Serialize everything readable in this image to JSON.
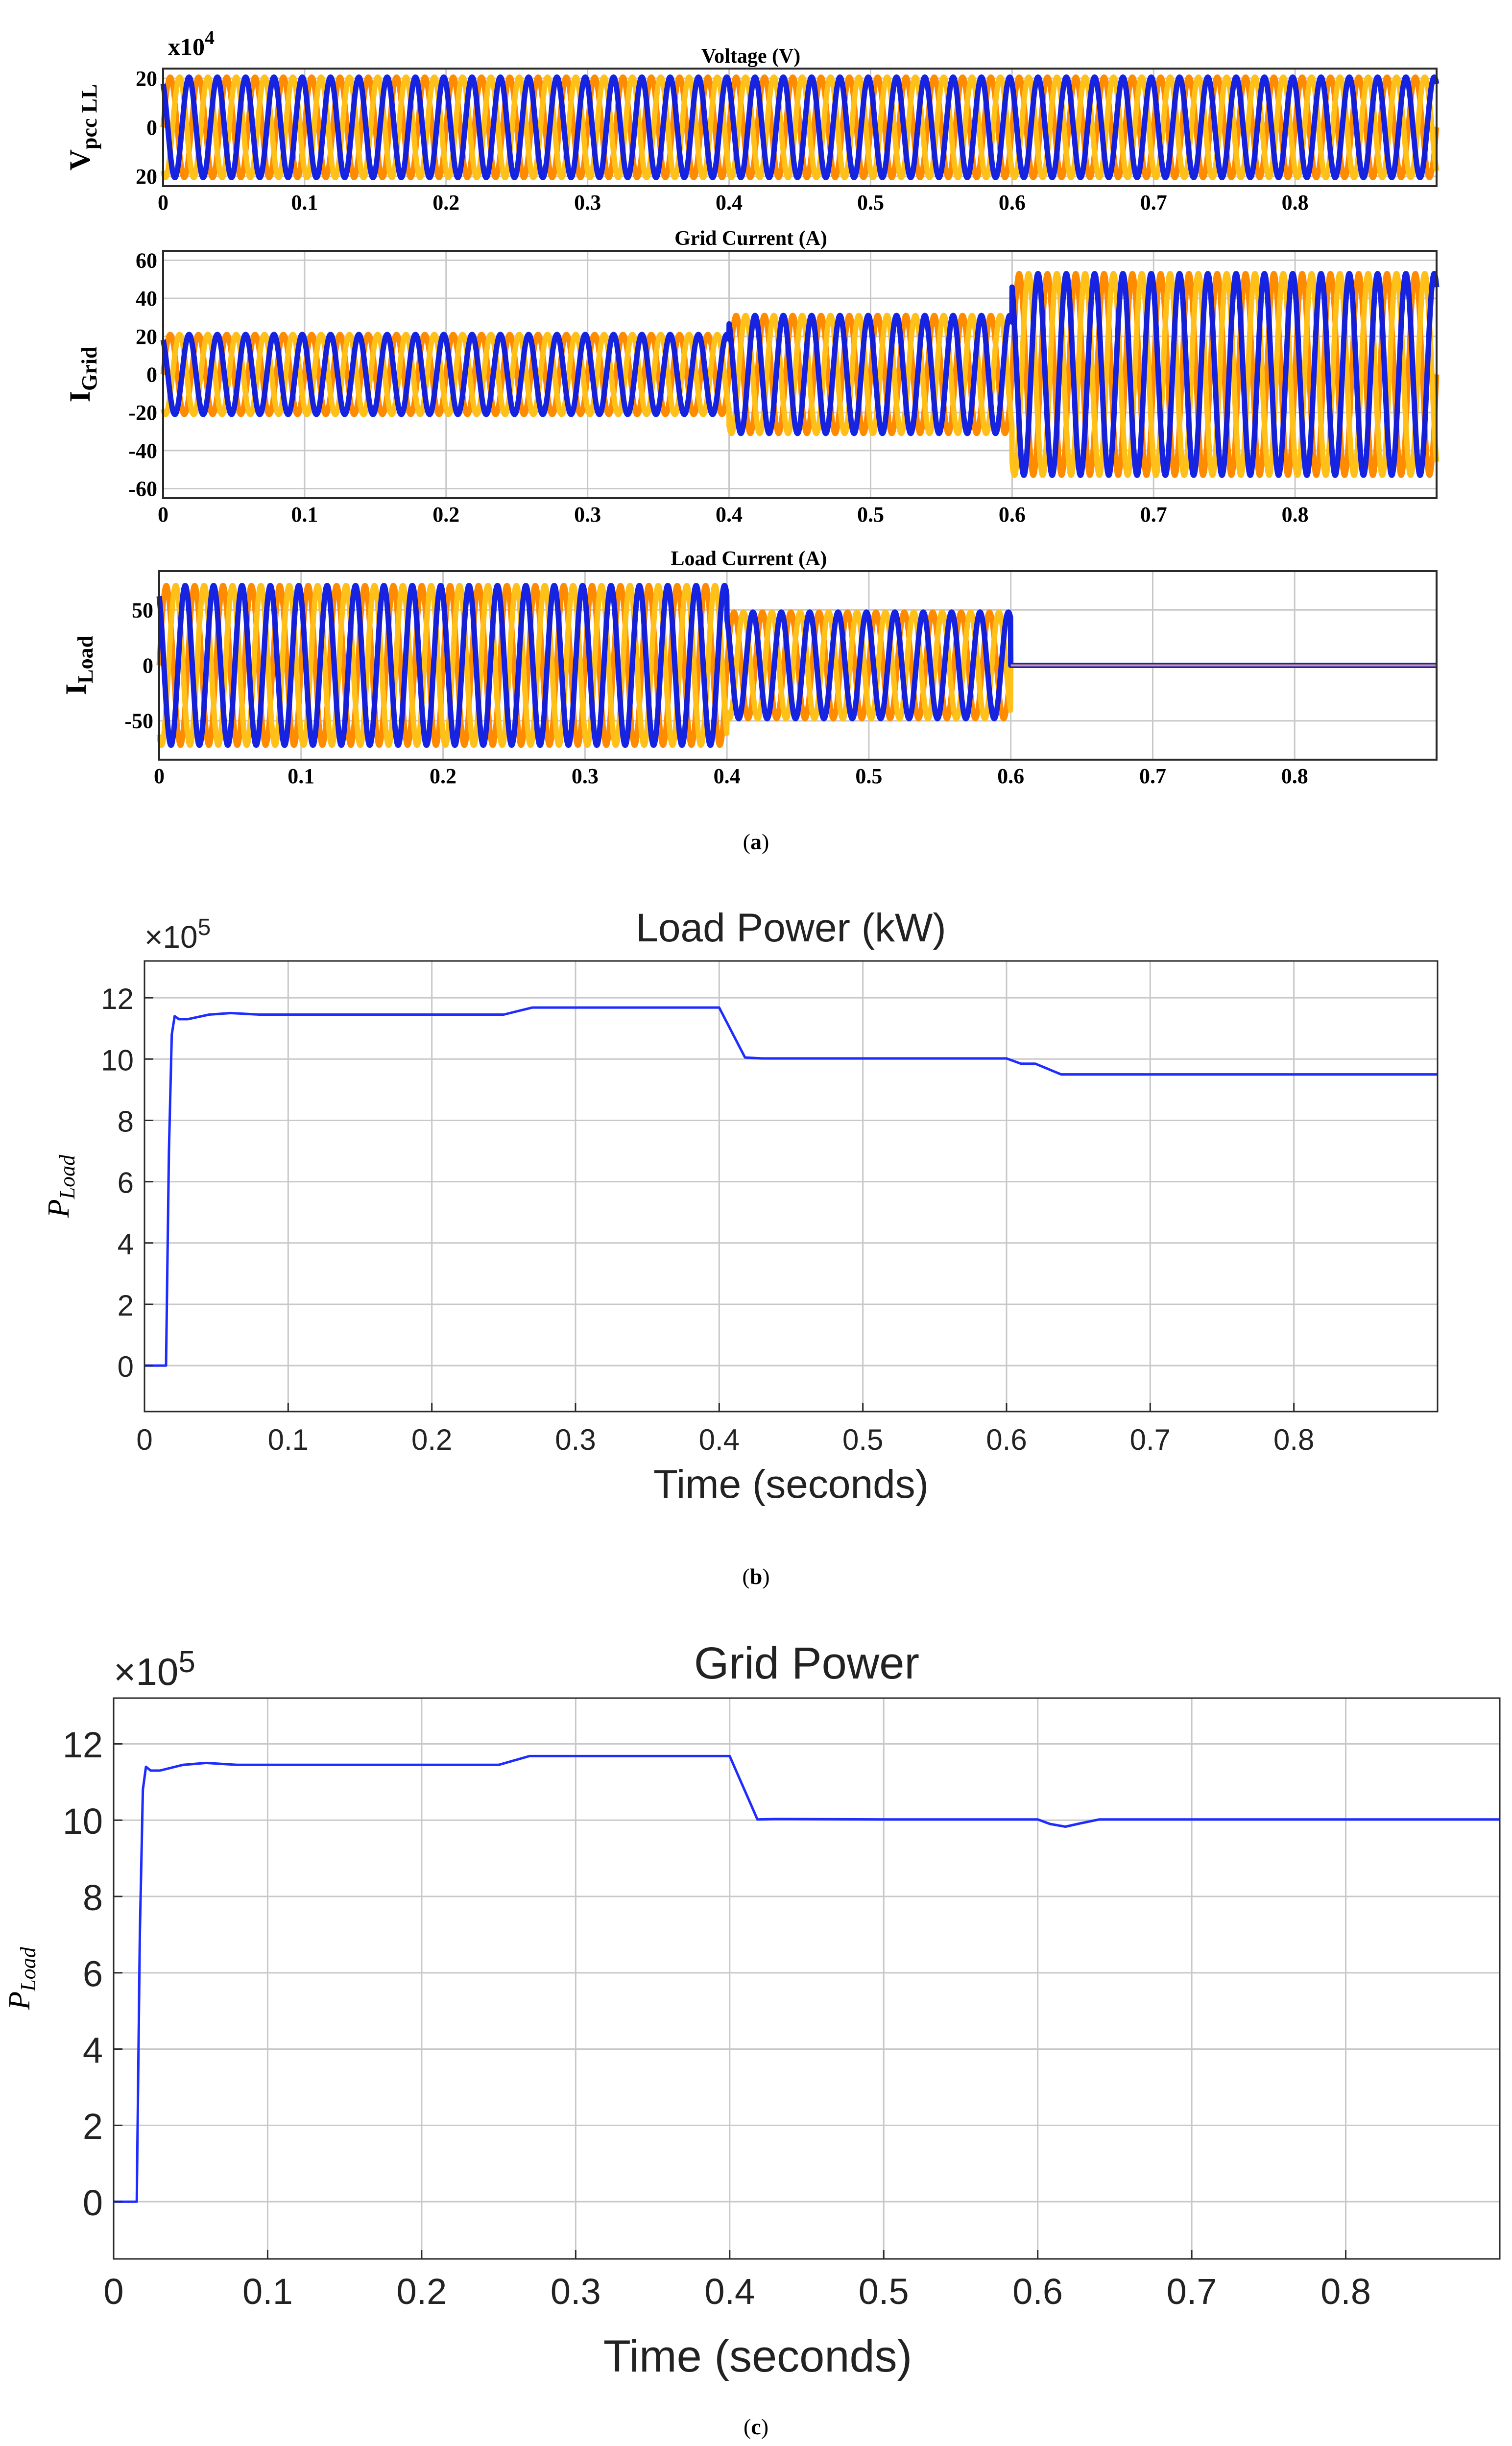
{
  "colors": {
    "phase_a": "#0a18e0",
    "phase_b": "#ff8c00",
    "phase_c": "#ffc01a",
    "phase_dark": "#8a1a35",
    "power_line": "#1f2cff",
    "grid": "#c8c8c8",
    "axis": "#2a2a2a",
    "flat_load": "#e39a6a"
  },
  "captions": {
    "a": "a",
    "b": "b",
    "c": "c"
  },
  "chart_data": [
    {
      "id": "voltage",
      "type": "line",
      "title": "Voltage (V)",
      "ylabel_main": "V",
      "ylabel_sub": "pcc LL",
      "exponent_base": "x10",
      "exponent_power": "4",
      "ytick_labels": [
        "20",
        "0",
        "20"
      ],
      "ytick_values": [
        20,
        0,
        -20
      ],
      "xticks": [
        "0",
        "0.1",
        "0.2",
        "0.3",
        "0.4",
        "0.5",
        "0.6",
        "0.7",
        "0.8"
      ],
      "xlim": [
        0,
        0.9
      ],
      "ylim": [
        -24,
        24
      ],
      "waveform": "three-phase",
      "segments": [
        {
          "t0": 0,
          "t1": 0.9,
          "amplitude": 20.5
        }
      ],
      "frequency_hz": 50
    },
    {
      "id": "grid_current",
      "type": "line",
      "title": "Grid Current (A)",
      "ylabel_main": "I",
      "ylabel_sub": "Grid",
      "ytick_labels": [
        "60",
        "40",
        "20",
        "0",
        "-20",
        "-40",
        "-60"
      ],
      "ytick_values": [
        60,
        40,
        20,
        0,
        -20,
        -40,
        -60
      ],
      "xticks": [
        "0",
        "0.1",
        "0.2",
        "0.3",
        "0.4",
        "0.5",
        "0.6",
        "0.7",
        "0.8"
      ],
      "xlim": [
        0,
        0.9
      ],
      "ylim": [
        -65,
        65
      ],
      "waveform": "three-phase",
      "segments": [
        {
          "t0": 0,
          "t1": 0.4,
          "amplitude": 21
        },
        {
          "t0": 0.4,
          "t1": 0.6,
          "amplitude": 31
        },
        {
          "t0": 0.6,
          "t1": 0.9,
          "amplitude": 53
        }
      ],
      "frequency_hz": 50
    },
    {
      "id": "load_current",
      "type": "line",
      "title": "Load Current (A)",
      "ylabel_main": "I",
      "ylabel_sub": "Load",
      "ytick_labels": [
        "50",
        "0",
        "-50"
      ],
      "ytick_values": [
        50,
        0,
        -50
      ],
      "xticks": [
        "0",
        "0.1",
        "0.2",
        "0.3",
        "0.4",
        "0.5",
        "0.6",
        "0.7",
        "0.8"
      ],
      "xlim": [
        0,
        0.9
      ],
      "ylim": [
        -85,
        85
      ],
      "waveform": "three-phase",
      "segments": [
        {
          "t0": 0,
          "t1": 0.4,
          "amplitude": 72
        },
        {
          "t0": 0.4,
          "t1": 0.6,
          "amplitude": 48
        },
        {
          "t0": 0.6,
          "t1": 0.9,
          "amplitude": 0
        }
      ],
      "frequency_hz": 50
    },
    {
      "id": "load_power",
      "type": "line",
      "title": "Load Power (kW)",
      "ylabel_main": "P",
      "ylabel_sub": "Load",
      "xlabel": "Time (seconds)",
      "exponent_base": "×10",
      "exponent_power": "5",
      "yticks": [
        "0",
        "2",
        "4",
        "6",
        "8",
        "10",
        "12"
      ],
      "ytick_values": [
        0,
        2,
        4,
        6,
        8,
        10,
        12
      ],
      "xticks": [
        "0",
        "0.1",
        "0.2",
        "0.3",
        "0.4",
        "0.5",
        "0.6",
        "0.7",
        "0.8"
      ],
      "xtick_values": [
        0,
        0.1,
        0.2,
        0.3,
        0.4,
        0.5,
        0.6,
        0.7,
        0.8
      ],
      "xlim": [
        0,
        0.9
      ],
      "ylim": [
        -1.5,
        13.2
      ],
      "x": [
        0,
        0.015,
        0.017,
        0.019,
        0.021,
        0.024,
        0.03,
        0.045,
        0.06,
        0.08,
        0.1,
        0.25,
        0.27,
        0.3,
        0.4,
        0.418,
        0.43,
        0.5,
        0.6,
        0.61,
        0.62,
        0.638,
        0.7,
        0.9
      ],
      "y": [
        0,
        0,
        7,
        10.8,
        11.4,
        11.3,
        11.3,
        11.45,
        11.5,
        11.45,
        11.45,
        11.45,
        11.68,
        11.68,
        11.68,
        10.05,
        10.02,
        10.02,
        10.02,
        9.85,
        9.85,
        9.5,
        9.5,
        9.5
      ]
    },
    {
      "id": "grid_power",
      "type": "line",
      "title": "Grid Power",
      "ylabel_main": "P",
      "ylabel_sub": "Load",
      "xlabel": "Time (seconds)",
      "exponent_base": "×10",
      "exponent_power": "5",
      "yticks": [
        "0",
        "2",
        "4",
        "6",
        "8",
        "10",
        "12"
      ],
      "ytick_values": [
        0,
        2,
        4,
        6,
        8,
        10,
        12
      ],
      "xticks": [
        "0",
        "0.1",
        "0.2",
        "0.3",
        "0.4",
        "0.5",
        "0.6",
        "0.7",
        "0.8"
      ],
      "xtick_values": [
        0,
        0.1,
        0.2,
        0.3,
        0.4,
        0.5,
        0.6,
        0.7,
        0.8
      ],
      "xlim": [
        0,
        0.9
      ],
      "ylim": [
        -1.5,
        13.2
      ],
      "x": [
        0,
        0.015,
        0.017,
        0.019,
        0.021,
        0.024,
        0.03,
        0.045,
        0.06,
        0.08,
        0.1,
        0.25,
        0.27,
        0.3,
        0.4,
        0.418,
        0.43,
        0.5,
        0.6,
        0.608,
        0.618,
        0.628,
        0.64,
        0.9
      ],
      "y": [
        0,
        0,
        7,
        10.8,
        11.4,
        11.3,
        11.3,
        11.45,
        11.5,
        11.45,
        11.45,
        11.45,
        11.68,
        11.68,
        11.68,
        10.02,
        10.03,
        10.02,
        10.02,
        9.9,
        9.83,
        9.92,
        10.02,
        10.02
      ]
    }
  ]
}
